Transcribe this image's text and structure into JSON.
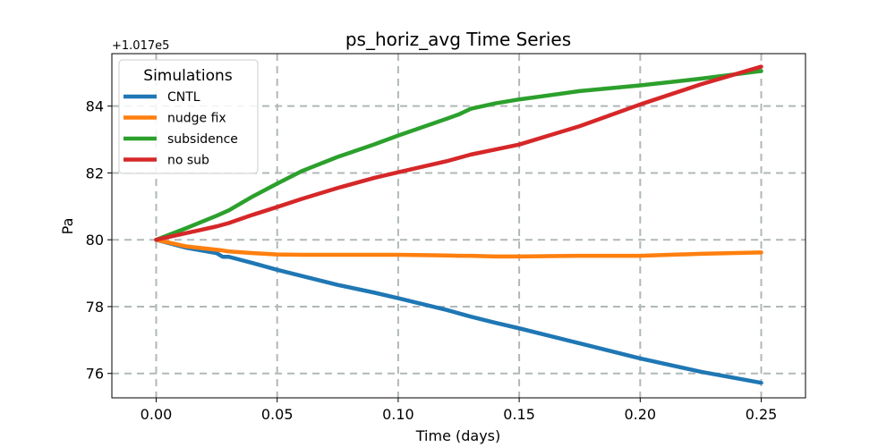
{
  "chart_data": {
    "type": "line",
    "title": "ps_horiz_avg Time Series",
    "xlabel": "Time (days)",
    "ylabel": "Pa",
    "y_offset_label": "+1.017e5",
    "xlim": [
      -0.0183,
      0.2683
    ],
    "ylim": [
      75.27,
      85.57
    ],
    "x_ticks": [
      0.0,
      0.05,
      0.1,
      0.15,
      0.2,
      0.25
    ],
    "x_tick_labels": [
      "0.00",
      "0.05",
      "0.10",
      "0.15",
      "0.20",
      "0.25"
    ],
    "y_ticks": [
      76,
      78,
      80,
      82,
      84
    ],
    "y_tick_labels": [
      "76",
      "78",
      "80",
      "82",
      "84"
    ],
    "grid": true,
    "legend_title": "Simulations",
    "legend_position": "top-left",
    "x": [
      0.0,
      0.0125,
      0.025,
      0.0275,
      0.03,
      0.04,
      0.05,
      0.06,
      0.075,
      0.09,
      0.1,
      0.12,
      0.125,
      0.13,
      0.14,
      0.15,
      0.175,
      0.2,
      0.225,
      0.25
    ],
    "series": [
      {
        "name": "CNTL",
        "color": "#1f77b4",
        "values": [
          80.0,
          79.76,
          79.6,
          79.49,
          79.49,
          79.3,
          79.1,
          78.92,
          78.65,
          78.42,
          78.25,
          77.9,
          77.8,
          77.7,
          77.52,
          77.35,
          76.9,
          76.45,
          76.05,
          75.72
        ]
      },
      {
        "name": "nudge fix",
        "color": "#ff7f0e",
        "values": [
          80.0,
          79.8,
          79.7,
          79.68,
          79.65,
          79.6,
          79.56,
          79.55,
          79.55,
          79.55,
          79.55,
          79.53,
          79.52,
          79.52,
          79.5,
          79.5,
          79.52,
          79.52,
          79.58,
          79.62
        ]
      },
      {
        "name": "subsidence",
        "color": "#2ca02c",
        "values": [
          80.0,
          80.35,
          80.72,
          80.8,
          80.88,
          81.3,
          81.68,
          82.05,
          82.48,
          82.85,
          83.12,
          83.62,
          83.75,
          83.92,
          84.08,
          84.2,
          84.45,
          84.62,
          84.82,
          85.05
        ]
      },
      {
        "name": "no sub",
        "color": "#d62728",
        "values": [
          80.0,
          80.2,
          80.4,
          80.45,
          80.5,
          80.75,
          80.98,
          81.22,
          81.55,
          81.85,
          82.02,
          82.35,
          82.45,
          82.55,
          82.7,
          82.85,
          83.4,
          84.05,
          84.65,
          85.18
        ]
      }
    ]
  }
}
